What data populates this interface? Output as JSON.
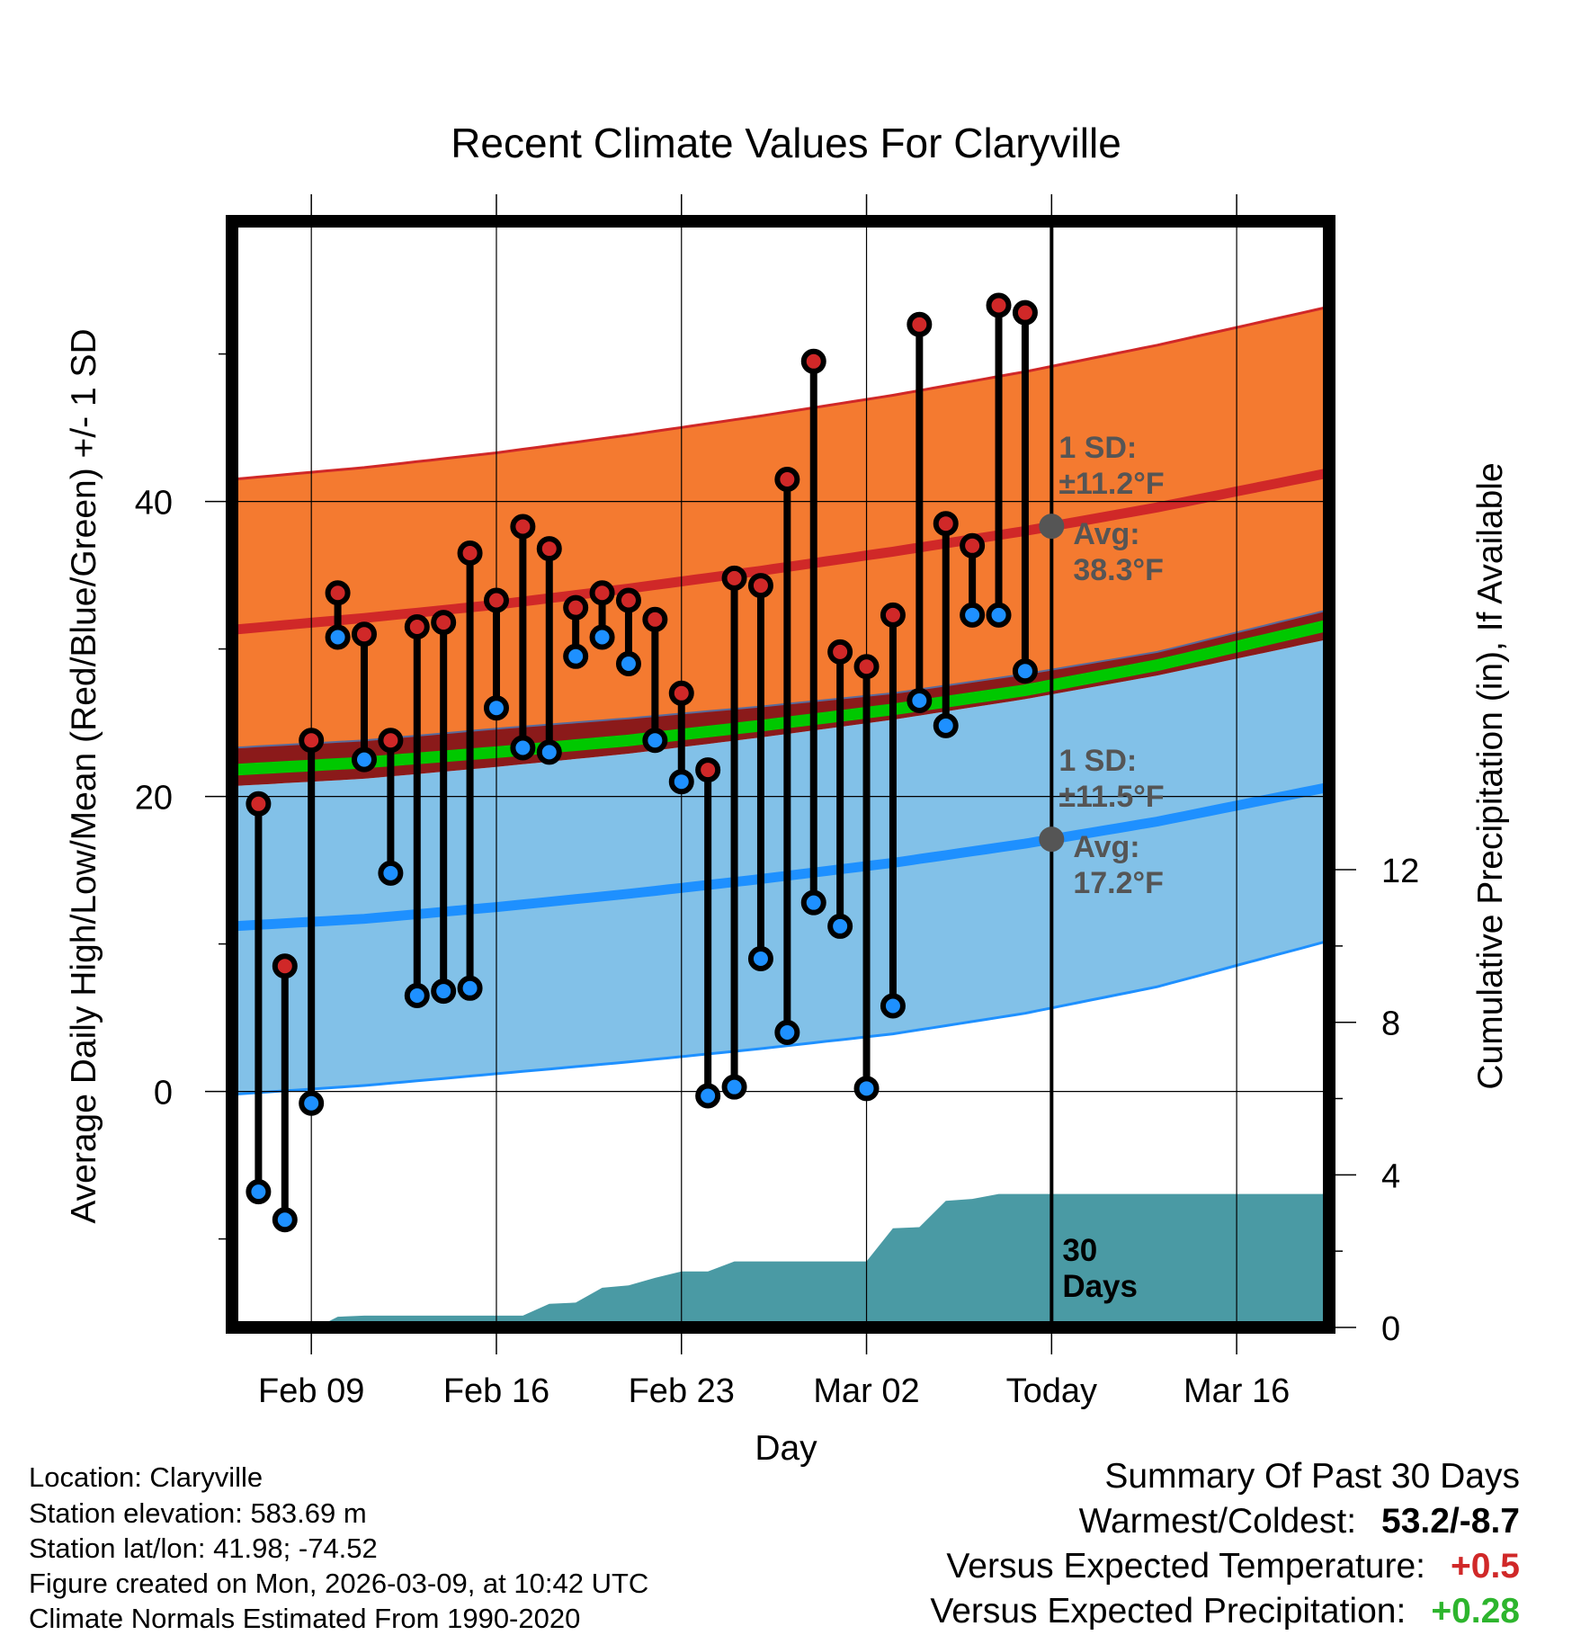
{
  "chart_data": {
    "type": "line",
    "title": "Recent Climate Values For Claryville",
    "xlabel": "Day",
    "ylabel": "Average Daily High/Low/Mean (Red/Blue/Green) +/- 1 SD",
    "y2label": "Cumulative Precipitation (in), If Available",
    "x_range": [
      0,
      41.5
    ],
    "ylim": [
      -16,
      59
    ],
    "y_ticks": [
      0,
      20,
      40
    ],
    "y2lim": [
      0,
      29
    ],
    "y2_ticks": [
      0,
      4,
      8,
      12
    ],
    "x_ticks": [
      {
        "day": 3,
        "label": "Feb 09"
      },
      {
        "day": 10,
        "label": "Feb 16"
      },
      {
        "day": 17,
        "label": "Feb 23"
      },
      {
        "day": 24,
        "label": "Mar 02"
      },
      {
        "day": 31,
        "label": "Today"
      },
      {
        "day": 38,
        "label": "Mar 16"
      }
    ],
    "today_day": 31,
    "normals": {
      "days": [
        0,
        5,
        10,
        15,
        20,
        25,
        30,
        35,
        40
      ],
      "high_mean": [
        31.3,
        32.1,
        33.0,
        34.1,
        35.3,
        36.6,
        38.0,
        39.6,
        41.4
      ],
      "high_upper": [
        41.5,
        42.3,
        43.3,
        44.5,
        45.8,
        47.2,
        48.8,
        50.6,
        52.6
      ],
      "high_lower": [
        23.3,
        23.8,
        24.6,
        25.3,
        26.1,
        27.0,
        28.3,
        29.8,
        32.0
      ],
      "mean_line": [
        21.8,
        22.3,
        23.0,
        23.8,
        24.8,
        25.9,
        27.2,
        28.9,
        31.0
      ],
      "low_mean": [
        11.2,
        11.7,
        12.5,
        13.4,
        14.4,
        15.5,
        16.8,
        18.3,
        20.1
      ],
      "low_upper": [
        20.7,
        21.2,
        22.0,
        22.9,
        24.0,
        25.2,
        26.6,
        28.2,
        30.1
      ],
      "low_lower": [
        -0.2,
        0.4,
        1.2,
        2.0,
        2.9,
        3.9,
        5.3,
        7.1,
        9.5
      ]
    },
    "series": [
      {
        "name": "Daily High",
        "days": [
          1,
          2,
          3,
          4,
          5,
          6,
          7,
          8,
          9,
          10,
          11,
          12,
          13,
          14,
          15,
          16,
          17,
          18,
          19,
          20,
          21,
          22,
          23,
          24,
          25,
          26,
          27,
          28,
          29,
          30
        ],
        "values": [
          19.5,
          8.5,
          23.8,
          33.8,
          31.0,
          23.8,
          31.5,
          31.8,
          36.5,
          33.3,
          38.3,
          36.8,
          32.8,
          33.8,
          33.3,
          32.0,
          27.0,
          21.8,
          34.8,
          34.3,
          41.5,
          49.5,
          29.8,
          28.8,
          32.3,
          52.0,
          38.5,
          37.0,
          53.3,
          52.8
        ]
      },
      {
        "name": "Daily Low",
        "days": [
          1,
          2,
          3,
          4,
          5,
          6,
          7,
          8,
          9,
          10,
          11,
          12,
          13,
          14,
          15,
          16,
          17,
          18,
          19,
          20,
          21,
          22,
          23,
          24,
          25,
          26,
          27,
          28,
          29,
          30
        ],
        "values": [
          -6.8,
          -8.7,
          -0.8,
          30.8,
          22.5,
          14.8,
          6.5,
          6.8,
          7.0,
          26.0,
          23.3,
          23.0,
          29.5,
          30.8,
          29.0,
          23.8,
          21.0,
          -0.3,
          0.3,
          9.0,
          4.0,
          12.8,
          11.2,
          0.2,
          5.8,
          26.5,
          24.8,
          32.3,
          32.3,
          28.5
        ]
      },
      {
        "name": "Cumulative Precipitation",
        "days": [
          3.2,
          4.0,
          5.0,
          6.0,
          7.0,
          8.0,
          9.0,
          10.0,
          10.8,
          11.0,
          12.0,
          13.0,
          14.0,
          15.0,
          16.0,
          17.0,
          18.0,
          19.0,
          20.0,
          21.0,
          22.0,
          23.0,
          24.0,
          25.0,
          26.0,
          27.0,
          28.0,
          29.0,
          30.0,
          31.0,
          35.0,
          41.5
        ],
        "values": [
          0,
          0.28,
          0.31,
          0.31,
          0.31,
          0.31,
          0.31,
          0.31,
          0.31,
          0.31,
          0.62,
          0.65,
          1.04,
          1.1,
          1.3,
          1.47,
          1.47,
          1.73,
          1.73,
          1.73,
          1.73,
          1.73,
          1.73,
          2.6,
          2.63,
          3.32,
          3.37,
          3.5,
          3.5,
          3.5,
          3.5,
          3.5
        ]
      }
    ],
    "annotations": {
      "high_sd": "1 SD:",
      "high_sd_value": "±11.2°F",
      "high_avg": "Avg:",
      "high_avg_value": "38.3°F",
      "low_sd": "1 SD:",
      "low_sd_value": "±11.5°F",
      "low_avg": "Avg:",
      "low_avg_value": "17.2°F",
      "days_30": "30",
      "days_word": "Days"
    }
  },
  "footer": {
    "location": "Location: Claryville",
    "elevation": "Station elevation: 583.69 m",
    "latlon": "Station lat/lon: 41.98; -74.52",
    "created": "Figure created on Mon, 2026-03-09, at 10:42 UTC",
    "normals": "Climate Normals Estimated From 1990-2020"
  },
  "summary": {
    "title": "Summary Of Past 30 Days",
    "warmest_label": "Warmest/Coldest:",
    "warmest_value": "53.2/-8.7",
    "temp_label": "Versus Expected Temperature:",
    "temp_value": "+0.5",
    "precip_label": "Versus Expected Precipitation:",
    "precip_value": "+0.28"
  },
  "colors": {
    "high_band": "#F47A30",
    "high_line": "#D02828",
    "low_band": "#82C1E8",
    "low_line": "#1E90FF",
    "mean_line": "#00C800",
    "precip": "#4A9AA4",
    "annotation": "#555555",
    "temp_positive": "#D02828",
    "precip_positive": "#2DB52D"
  }
}
